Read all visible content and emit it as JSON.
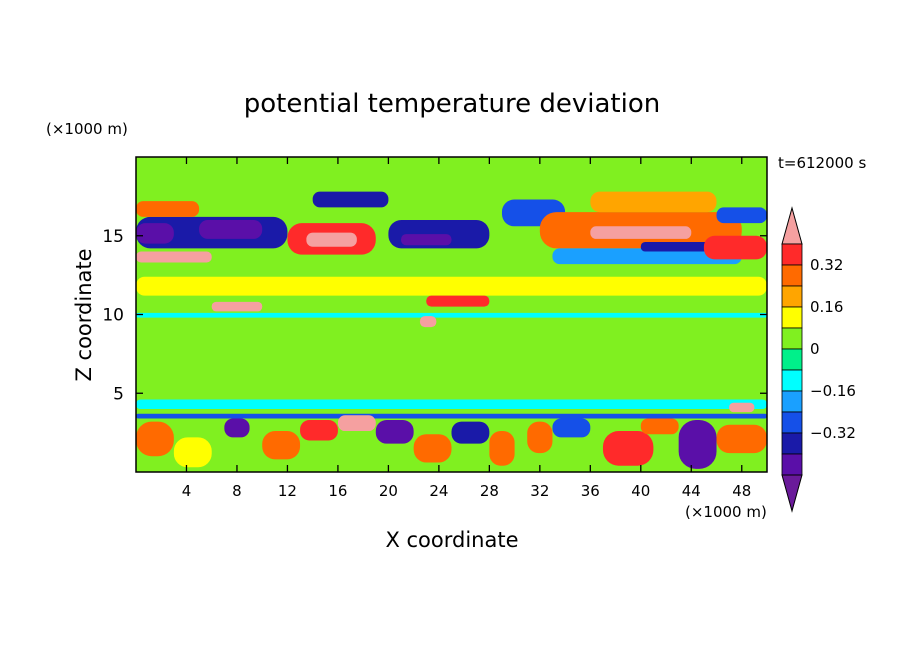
{
  "chart_data": {
    "type": "heatmap",
    "title": "potential temperature deviation",
    "xlabel": "X coordinate",
    "ylabel": "Z coordinate",
    "x_unit": "(×1000 m)",
    "y_unit": "(×1000 m)",
    "time_label": "t=612000 s",
    "xlim": [
      0,
      50
    ],
    "ylim": [
      0,
      20
    ],
    "x_ticks": [
      4,
      8,
      12,
      16,
      20,
      24,
      28,
      32,
      36,
      40,
      44,
      48
    ],
    "y_ticks": [
      5,
      10,
      15
    ],
    "colorbar": {
      "levels": [
        -0.48,
        -0.4,
        -0.32,
        -0.24,
        -0.16,
        -0.08,
        0,
        0.08,
        0.16,
        0.24,
        0.32,
        0.4,
        0.48
      ],
      "labels": [
        "0.32",
        "0.16",
        "0",
        "−0.16",
        "−0.32"
      ],
      "label_values": [
        0.32,
        0.16,
        0,
        -0.16,
        -0.32
      ],
      "colors": [
        "#6a1a9a",
        "#5a0fa8",
        "#1a1aa8",
        "#1550e8",
        "#1aa0ff",
        "#00ffff",
        "#00f08a",
        "#80f020",
        "#ffff00",
        "#ffa500",
        "#ff6a00",
        "#ff2a2a",
        "#f5a0a0"
      ]
    },
    "regions": [
      {
        "x": [
          0,
          50
        ],
        "z": [
          0,
          20
        ],
        "v": 0.02
      },
      {
        "x": [
          2,
          18
        ],
        "z": [
          17,
          20
        ],
        "v": 0.06
      },
      {
        "x": [
          26,
          50
        ],
        "z": [
          17.5,
          20
        ],
        "v": 0.06
      },
      {
        "x": [
          0,
          12
        ],
        "z": [
          14.2,
          16.2
        ],
        "v": -0.36
      },
      {
        "x": [
          0,
          3
        ],
        "z": [
          14.5,
          15.8
        ],
        "v": -0.44
      },
      {
        "x": [
          5,
          10
        ],
        "z": [
          14.8,
          16
        ],
        "v": -0.44
      },
      {
        "x": [
          0,
          5
        ],
        "z": [
          16.2,
          17.2
        ],
        "v": 0.3
      },
      {
        "x": [
          0,
          6
        ],
        "z": [
          13.3,
          14
        ],
        "v": 0.42
      },
      {
        "x": [
          12,
          19
        ],
        "z": [
          13.8,
          15.8
        ],
        "v": 0.36
      },
      {
        "x": [
          13.5,
          17.5
        ],
        "z": [
          14.3,
          15.2
        ],
        "v": 0.45
      },
      {
        "x": [
          14,
          20
        ],
        "z": [
          16.8,
          17.8
        ],
        "v": -0.34
      },
      {
        "x": [
          20,
          28
        ],
        "z": [
          14.2,
          16
        ],
        "v": -0.34
      },
      {
        "x": [
          21,
          25
        ],
        "z": [
          14.4,
          15.1
        ],
        "v": -0.44
      },
      {
        "x": [
          29,
          34
        ],
        "z": [
          15.6,
          17.3
        ],
        "v": -0.24
      },
      {
        "x": [
          32,
          48
        ],
        "z": [
          14.2,
          16.5
        ],
        "v": 0.3
      },
      {
        "x": [
          36,
          44
        ],
        "z": [
          14.8,
          15.6
        ],
        "v": 0.45
      },
      {
        "x": [
          36,
          46
        ],
        "z": [
          16.5,
          17.8
        ],
        "v": 0.22
      },
      {
        "x": [
          33,
          48
        ],
        "z": [
          13.2,
          14.2
        ],
        "v": -0.22
      },
      {
        "x": [
          40,
          46
        ],
        "z": [
          14,
          14.6
        ],
        "v": -0.36
      },
      {
        "x": [
          45,
          50
        ],
        "z": [
          13.5,
          15
        ],
        "v": 0.36
      },
      {
        "x": [
          46,
          50
        ],
        "z": [
          15.8,
          16.8
        ],
        "v": -0.26
      },
      {
        "x": [
          0,
          50
        ],
        "z": [
          11.2,
          12.4
        ],
        "v": 0.1
      },
      {
        "x": [
          6,
          10
        ],
        "z": [
          10.2,
          10.8
        ],
        "v": 0.42
      },
      {
        "x": [
          23,
          28
        ],
        "z": [
          10.5,
          11.2
        ],
        "v": 0.4
      },
      {
        "x": [
          22,
          27
        ],
        "z": [
          9.5,
          10.2
        ],
        "v": 0.06
      },
      {
        "x": [
          0,
          50
        ],
        "z": [
          9.8,
          10.1
        ],
        "v": -0.08
      },
      {
        "x": [
          22.5,
          23.8
        ],
        "z": [
          9.2,
          9.9
        ],
        "v": 0.45
      },
      {
        "x": [
          0,
          50
        ],
        "z": [
          4.0,
          4.6
        ],
        "v": -0.12
      },
      {
        "x": [
          0,
          50
        ],
        "z": [
          3.4,
          3.7
        ],
        "v": -0.26
      },
      {
        "x": [
          0,
          3
        ],
        "z": [
          1,
          3.2
        ],
        "v": 0.32
      },
      {
        "x": [
          3,
          6
        ],
        "z": [
          0.3,
          2.2
        ],
        "v": 0.12
      },
      {
        "x": [
          7,
          9
        ],
        "z": [
          2.2,
          3.4
        ],
        "v": -0.42
      },
      {
        "x": [
          10,
          13
        ],
        "z": [
          0.8,
          2.6
        ],
        "v": 0.26
      },
      {
        "x": [
          13,
          16
        ],
        "z": [
          2,
          3.3
        ],
        "v": 0.36
      },
      {
        "x": [
          16,
          19
        ],
        "z": [
          2.6,
          3.6
        ],
        "v": 0.44
      },
      {
        "x": [
          19,
          22
        ],
        "z": [
          1.8,
          3.3
        ],
        "v": -0.42
      },
      {
        "x": [
          22,
          25
        ],
        "z": [
          0.6,
          2.4
        ],
        "v": 0.28
      },
      {
        "x": [
          25,
          28
        ],
        "z": [
          1.8,
          3.2
        ],
        "v": -0.34
      },
      {
        "x": [
          28,
          30
        ],
        "z": [
          0.4,
          2.6
        ],
        "v": 0.32
      },
      {
        "x": [
          31,
          33
        ],
        "z": [
          1.2,
          3.2
        ],
        "v": 0.26
      },
      {
        "x": [
          33,
          36
        ],
        "z": [
          2.2,
          3.4
        ],
        "v": -0.28
      },
      {
        "x": [
          37,
          41
        ],
        "z": [
          0.4,
          2.6
        ],
        "v": 0.34
      },
      {
        "x": [
          40,
          43
        ],
        "z": [
          2.4,
          3.4
        ],
        "v": 0.28
      },
      {
        "x": [
          43,
          46
        ],
        "z": [
          0.2,
          3.3
        ],
        "v": -0.42
      },
      {
        "x": [
          46,
          50
        ],
        "z": [
          1.2,
          3
        ],
        "v": 0.26
      },
      {
        "x": [
          47,
          49
        ],
        "z": [
          3.8,
          4.4
        ],
        "v": 0.42
      }
    ]
  }
}
